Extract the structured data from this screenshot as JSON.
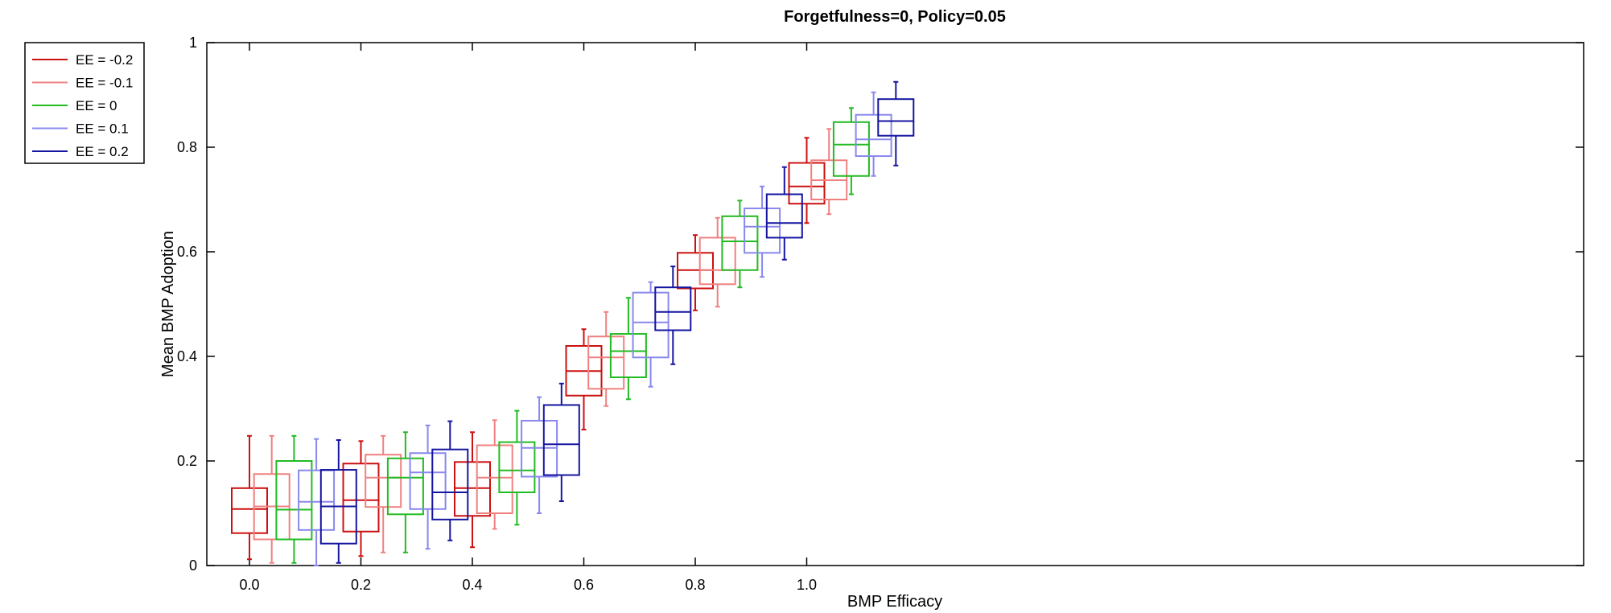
{
  "chart_data": {
    "type": "box",
    "title": "Forgetfulness=0, Policy=0.05",
    "xlabel": "BMP Efficacy",
    "ylabel": "Mean BMP Adoption",
    "ylim": [
      0,
      1
    ],
    "y_ticks": [
      "0",
      "0.2",
      "0.4",
      "0.6",
      "0.8",
      "1"
    ],
    "x_ticks": [
      "0.0",
      "0.2",
      "0.4",
      "0.6",
      "0.8",
      "1.0"
    ],
    "legend_position": "outside-top-left",
    "series": [
      {
        "name": "EE = -0.2",
        "color": "#cc1111",
        "boxes": [
          {
            "x": 0.0,
            "whislo": 0.012,
            "q1": 0.062,
            "med": 0.108,
            "q3": 0.148,
            "whishi": 0.248
          },
          {
            "x": 0.2,
            "whislo": 0.018,
            "q1": 0.065,
            "med": 0.125,
            "q3": 0.195,
            "whishi": 0.238
          },
          {
            "x": 0.4,
            "whislo": 0.035,
            "q1": 0.095,
            "med": 0.148,
            "q3": 0.198,
            "whishi": 0.255
          },
          {
            "x": 0.6,
            "whislo": 0.26,
            "q1": 0.325,
            "med": 0.372,
            "q3": 0.42,
            "whishi": 0.452
          },
          {
            "x": 0.8,
            "whislo": 0.488,
            "q1": 0.53,
            "med": 0.565,
            "q3": 0.598,
            "whishi": 0.632
          },
          {
            "x": 1.0,
            "whislo": 0.655,
            "q1": 0.692,
            "med": 0.725,
            "q3": 0.77,
            "whishi": 0.818
          }
        ]
      },
      {
        "name": "EE = -0.1",
        "color": "#f08080",
        "boxes": [
          {
            "x": 0.04,
            "whislo": 0.005,
            "q1": 0.05,
            "med": 0.113,
            "q3": 0.175,
            "whishi": 0.248
          },
          {
            "x": 0.24,
            "whislo": 0.025,
            "q1": 0.112,
            "med": 0.168,
            "q3": 0.212,
            "whishi": 0.248
          },
          {
            "x": 0.44,
            "whislo": 0.07,
            "q1": 0.1,
            "med": 0.168,
            "q3": 0.23,
            "whishi": 0.278
          },
          {
            "x": 0.64,
            "whislo": 0.305,
            "q1": 0.338,
            "med": 0.398,
            "q3": 0.438,
            "whishi": 0.485
          },
          {
            "x": 0.84,
            "whislo": 0.495,
            "q1": 0.538,
            "med": 0.565,
            "q3": 0.627,
            "whishi": 0.665
          },
          {
            "x": 1.04,
            "whislo": 0.672,
            "q1": 0.7,
            "med": 0.737,
            "q3": 0.775,
            "whishi": 0.835
          }
        ]
      },
      {
        "name": "EE = 0",
        "color": "#22bb22",
        "boxes": [
          {
            "x": 0.08,
            "whislo": 0.005,
            "q1": 0.05,
            "med": 0.107,
            "q3": 0.2,
            "whishi": 0.248
          },
          {
            "x": 0.28,
            "whislo": 0.025,
            "q1": 0.098,
            "med": 0.168,
            "q3": 0.205,
            "whishi": 0.255
          },
          {
            "x": 0.48,
            "whislo": 0.078,
            "q1": 0.14,
            "med": 0.182,
            "q3": 0.236,
            "whishi": 0.296
          },
          {
            "x": 0.68,
            "whislo": 0.318,
            "q1": 0.36,
            "med": 0.41,
            "q3": 0.443,
            "whishi": 0.512
          },
          {
            "x": 0.88,
            "whislo": 0.532,
            "q1": 0.565,
            "med": 0.62,
            "q3": 0.668,
            "whishi": 0.698
          },
          {
            "x": 1.08,
            "whislo": 0.71,
            "q1": 0.745,
            "med": 0.805,
            "q3": 0.848,
            "whishi": 0.875
          }
        ]
      },
      {
        "name": "EE = 0.1",
        "color": "#8888ee",
        "boxes": [
          {
            "x": 0.12,
            "whislo": 0.0,
            "q1": 0.068,
            "med": 0.122,
            "q3": 0.182,
            "whishi": 0.242
          },
          {
            "x": 0.32,
            "whislo": 0.032,
            "q1": 0.108,
            "med": 0.178,
            "q3": 0.215,
            "whishi": 0.268
          },
          {
            "x": 0.52,
            "whislo": 0.1,
            "q1": 0.17,
            "med": 0.225,
            "q3": 0.277,
            "whishi": 0.322
          },
          {
            "x": 0.72,
            "whislo": 0.342,
            "q1": 0.398,
            "med": 0.465,
            "q3": 0.522,
            "whishi": 0.542
          },
          {
            "x": 0.92,
            "whislo": 0.552,
            "q1": 0.598,
            "med": 0.648,
            "q3": 0.683,
            "whishi": 0.725
          },
          {
            "x": 1.12,
            "whislo": 0.745,
            "q1": 0.783,
            "med": 0.815,
            "q3": 0.862,
            "whishi": 0.905
          }
        ]
      },
      {
        "name": "EE = 0.2",
        "color": "#1515a0",
        "boxes": [
          {
            "x": 0.16,
            "whislo": 0.005,
            "q1": 0.042,
            "med": 0.113,
            "q3": 0.183,
            "whishi": 0.24
          },
          {
            "x": 0.36,
            "whislo": 0.048,
            "q1": 0.088,
            "med": 0.14,
            "q3": 0.222,
            "whishi": 0.276
          },
          {
            "x": 0.56,
            "whislo": 0.123,
            "q1": 0.173,
            "med": 0.232,
            "q3": 0.307,
            "whishi": 0.348
          },
          {
            "x": 0.76,
            "whislo": 0.385,
            "q1": 0.45,
            "med": 0.485,
            "q3": 0.532,
            "whishi": 0.572
          },
          {
            "x": 0.96,
            "whislo": 0.585,
            "q1": 0.627,
            "med": 0.655,
            "q3": 0.71,
            "whishi": 0.762
          },
          {
            "x": 1.16,
            "whislo": 0.765,
            "q1": 0.822,
            "med": 0.85,
            "q3": 0.892,
            "whishi": 0.925
          }
        ]
      }
    ]
  }
}
